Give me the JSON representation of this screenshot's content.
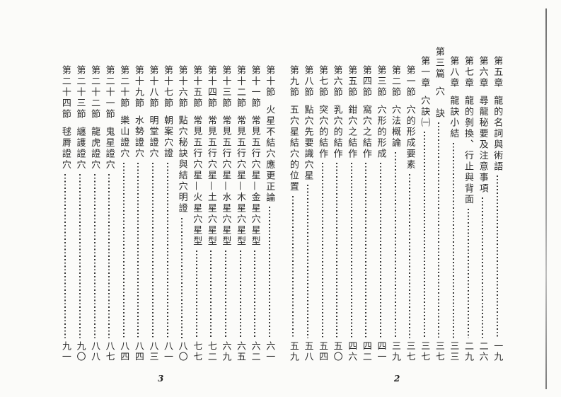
{
  "colors": {
    "ink": "#2b2b2b",
    "paper": "#fbfbf9",
    "leader_dot": "#3a3a3a",
    "edge_line": "#8b8b8b"
  },
  "toc": {
    "right_page": {
      "footer_page_number": "2",
      "entries": [
        {
          "level": "chapter",
          "num": "第五章",
          "title": "龍的名詞與術語",
          "page": "一九"
        },
        {
          "level": "chapter",
          "num": "第六章",
          "title": "尋龍秘要及注意事項",
          "page": "二六"
        },
        {
          "level": "chapter",
          "num": "第七章",
          "title": "龍的剝換、行止與背面",
          "page": "二九"
        },
        {
          "level": "chapter",
          "num": "第八章",
          "title": "龍訣小結",
          "page": "三三"
        },
        {
          "level": "part",
          "num": "第三篇",
          "title": "穴　訣",
          "page": "三七"
        },
        {
          "level": "chapter",
          "num": "第一章",
          "title": "穴訣㈠",
          "page": "三七"
        },
        {
          "level": "section",
          "num": "第一節",
          "title": "穴的形成要素",
          "page": "三七"
        },
        {
          "level": "section",
          "num": "第二節",
          "title": "穴法概論",
          "page": "三九"
        },
        {
          "level": "section",
          "num": "第三節",
          "title": "穴形的形成",
          "page": "四一"
        },
        {
          "level": "section",
          "num": "第四節",
          "title": "窩穴之結作",
          "page": "四二"
        },
        {
          "level": "section",
          "num": "第五節",
          "title": "鉗穴之結作",
          "page": "四六"
        },
        {
          "level": "section",
          "num": "第六節",
          "title": "乳穴的結作",
          "page": "五〇"
        },
        {
          "level": "section",
          "num": "第七節",
          "title": "突穴的結作",
          "page": "五四"
        },
        {
          "level": "section",
          "num": "第八節",
          "title": "點穴先要識穴星",
          "page": "五八"
        },
        {
          "level": "section",
          "num": "第九節",
          "title": "五穴星結穴的位置",
          "page": "五九"
        }
      ]
    },
    "left_page": {
      "footer_page_number": "3",
      "entries": [
        {
          "level": "section",
          "num": "第十節",
          "title": "火星不結穴應更正論",
          "page": "六一"
        },
        {
          "level": "section",
          "num": "第十一節",
          "title": "常見五行穴星—金星穴星型",
          "page": "六二"
        },
        {
          "level": "section",
          "num": "第十二節",
          "title": "常見五行穴星—木星穴星型",
          "page": "六五"
        },
        {
          "level": "section",
          "num": "第十三節",
          "title": "常見五行穴星—水星穴星型",
          "page": "六九"
        },
        {
          "level": "section",
          "num": "第十四節",
          "title": "常見五行穴星—土星穴星型",
          "page": "七二"
        },
        {
          "level": "section",
          "num": "第十五節",
          "title": "常見五行穴星—火星穴星型",
          "page": "七七"
        },
        {
          "level": "section",
          "num": "第十六節",
          "title": "點穴秘訣與結穴明證",
          "page": "八〇"
        },
        {
          "level": "section",
          "num": "第十七節",
          "title": "朝案穴證",
          "page": "八一"
        },
        {
          "level": "section",
          "num": "第十八節",
          "title": "明堂證穴",
          "page": "八三"
        },
        {
          "level": "section",
          "num": "第十九節",
          "title": "水勢證穴",
          "page": "八四"
        },
        {
          "level": "section",
          "num": "第二十節",
          "title": "樂山證穴",
          "page": "八四"
        },
        {
          "level": "section",
          "num": "第二十一節",
          "title": "鬼星證穴",
          "page": "八七"
        },
        {
          "level": "section",
          "num": "第二十二節",
          "title": "龍虎證穴",
          "page": "八八"
        },
        {
          "level": "section",
          "num": "第二十三節",
          "title": "纏護證穴",
          "page": "九〇"
        },
        {
          "level": "section",
          "num": "第二十四節",
          "title": "毬脣證穴",
          "page": "九一"
        }
      ]
    }
  }
}
